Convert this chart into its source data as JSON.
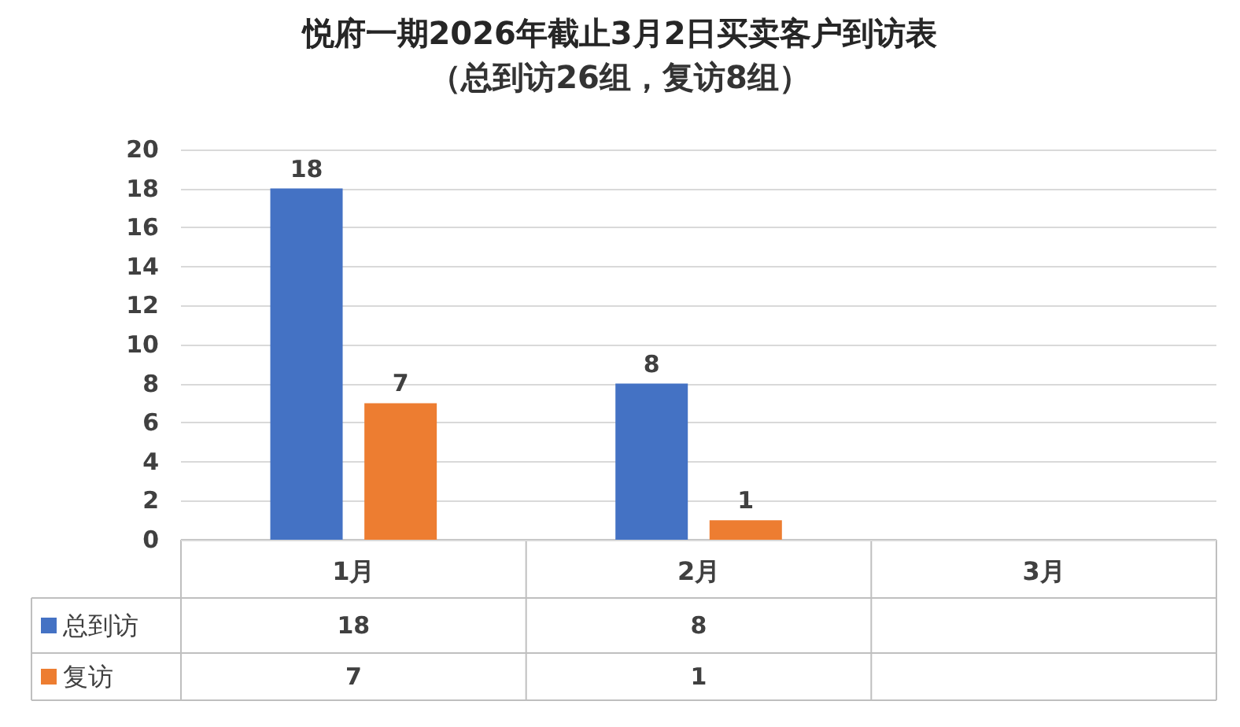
{
  "chart_data": {
    "type": "bar",
    "title": "悦府一期2026年截止3月2日买卖客户到访表",
    "subtitle": "（总到访26组，复访8组）",
    "categories": [
      "1月",
      "2月",
      "3月"
    ],
    "series": [
      {
        "name": "总到访",
        "color": "#4472c4",
        "values": [
          18,
          8,
          null
        ]
      },
      {
        "name": "复访",
        "color": "#ed7d31",
        "values": [
          7,
          1,
          null
        ]
      }
    ],
    "annotations": [
      "18",
      "8",
      "7",
      "1"
    ],
    "ylim": [
      0,
      20
    ],
    "yticks": [
      0,
      2,
      4,
      6,
      8,
      10,
      12,
      14,
      16,
      18,
      20
    ],
    "grid": "y",
    "legend": "bottom left",
    "data_labels": true
  }
}
